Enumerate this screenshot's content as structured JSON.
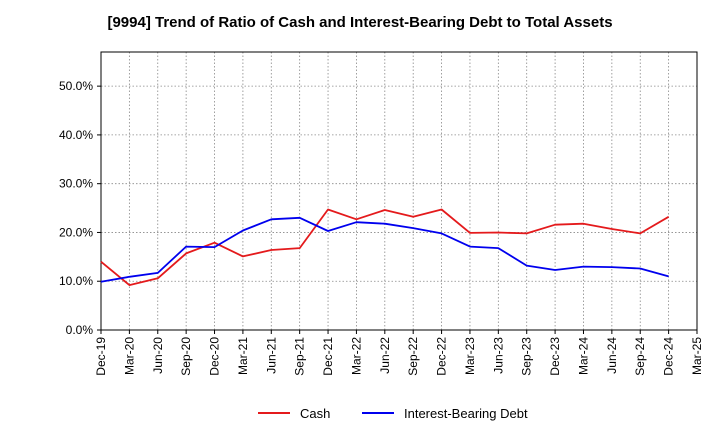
{
  "chart_data": {
    "type": "line",
    "title": "[9994]  Trend of Ratio of Cash and Interest-Bearing Debt to Total Assets",
    "x": [
      "Dec-19",
      "Mar-20",
      "Jun-20",
      "Sep-20",
      "Dec-20",
      "Mar-21",
      "Jun-21",
      "Sep-21",
      "Dec-21",
      "Mar-22",
      "Jun-22",
      "Sep-22",
      "Dec-22",
      "Mar-23",
      "Jun-23",
      "Sep-23",
      "Dec-23",
      "Mar-24",
      "Jun-24",
      "Sep-24",
      "Dec-24",
      "Mar-25"
    ],
    "y_ticks": [
      "0.0%",
      "10.0%",
      "20.0%",
      "30.0%",
      "40.0%",
      "50.0%"
    ],
    "ylim": [
      0,
      57
    ],
    "grid": true,
    "legend_position": "bottom",
    "series": [
      {
        "name": "Cash",
        "color": "#e41a1c",
        "values": [
          14.0,
          9.2,
          10.6,
          15.7,
          17.9,
          15.1,
          16.4,
          16.8,
          24.7,
          22.7,
          24.6,
          23.2,
          24.7,
          19.9,
          20.0,
          19.8,
          21.6,
          21.8,
          20.7,
          19.8,
          23.2,
          null
        ]
      },
      {
        "name": "Interest-Bearing Debt",
        "color": "#0000ee",
        "values": [
          9.9,
          10.9,
          11.7,
          17.1,
          17.0,
          20.4,
          22.7,
          23.0,
          20.3,
          22.1,
          21.8,
          20.9,
          19.8,
          17.1,
          16.8,
          13.2,
          12.3,
          13.0,
          12.9,
          12.6,
          11.0,
          null
        ]
      }
    ]
  }
}
